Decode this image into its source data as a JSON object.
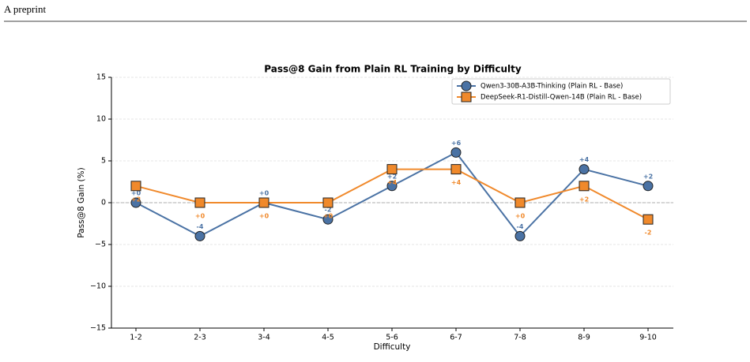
{
  "header": {
    "text": "A preprint"
  },
  "chart_data": {
    "type": "line",
    "title": "Pass@8 Gain from Plain RL Training by Difficulty",
    "xlabel": "Difficulty",
    "ylabel": "Pass@8 Gain (%)",
    "categories": [
      "1-2",
      "2-3",
      "3-4",
      "4-5",
      "5-6",
      "6-7",
      "7-8",
      "8-9",
      "9-10"
    ],
    "series": [
      {
        "name": "Qwen3-30B-A3B-Thinking (Plain RL - Base)",
        "color": "#4a72a4",
        "marker": "circle",
        "values": [
          0,
          -4,
          0,
          -2,
          2,
          6,
          -4,
          4,
          2
        ],
        "value_labels": [
          "+0",
          "-4",
          "+0",
          "-2",
          "+2",
          "+6",
          "-4",
          "+4",
          "+2"
        ]
      },
      {
        "name": "DeepSeek-R1-Distill-Qwen-14B (Plain RL - Base)",
        "color": "#f0892b",
        "marker": "square",
        "values": [
          2,
          0,
          0,
          0,
          4,
          4,
          0,
          2,
          -2
        ],
        "value_labels": [
          "+2",
          "+0",
          "+0",
          "+0",
          "+4",
          "+4",
          "+0",
          "+2",
          "-2"
        ]
      }
    ],
    "ylim": [
      -15,
      15
    ],
    "yticks": [
      {
        "value": -15,
        "label": "−15"
      },
      {
        "value": -10,
        "label": "−10"
      },
      {
        "value": -5,
        "label": "−5"
      },
      0,
      5,
      10,
      15
    ],
    "grid": true,
    "zero_line": true,
    "legend": "upper right"
  }
}
